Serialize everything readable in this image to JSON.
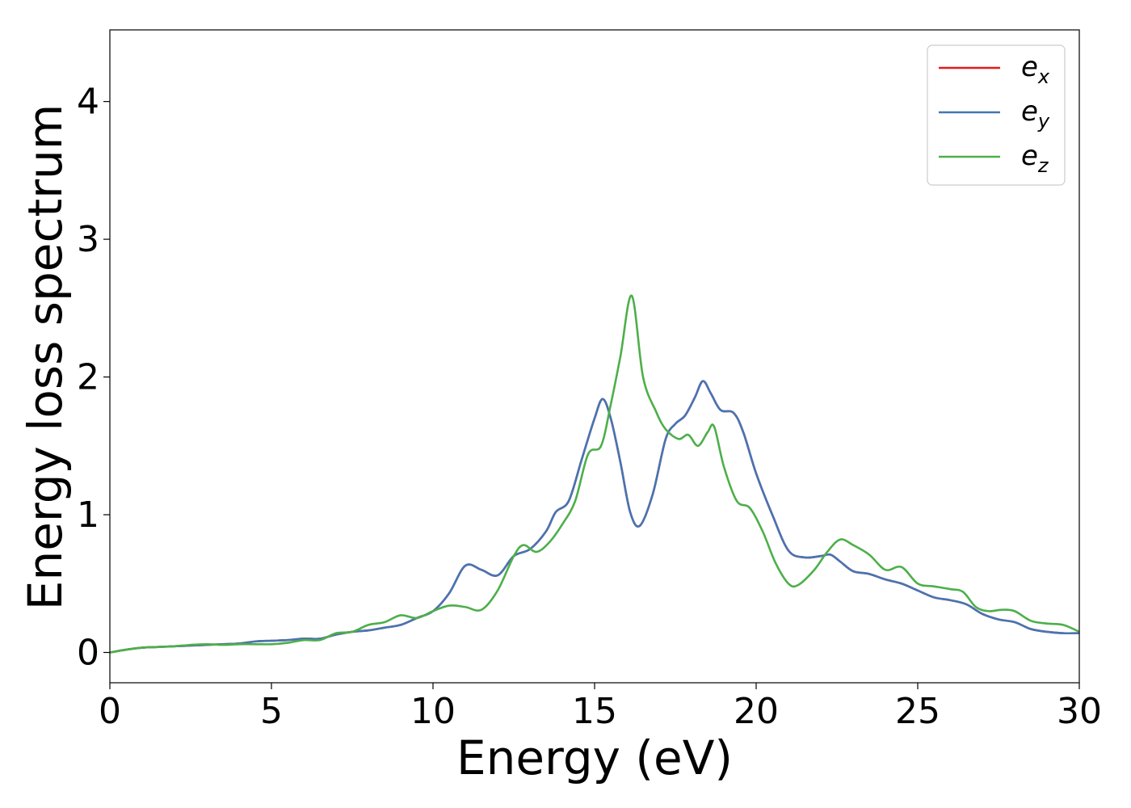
{
  "chart_data": {
    "type": "line",
    "title": "",
    "xlabel": "Energy (eV)",
    "ylabel": "Energy loss spectrum",
    "xlim": [
      0,
      30
    ],
    "ylim": [
      -0.22,
      4.52
    ],
    "xticks": [
      0,
      5,
      10,
      15,
      20,
      25,
      30
    ],
    "yticks": [
      0,
      1,
      2,
      3,
      4
    ],
    "grid": false,
    "legend_position": "top-right",
    "series": [
      {
        "name": "e_x",
        "label_main": "e",
        "label_sub": "x",
        "color": "#e41a1c",
        "points": [
          [
            0,
            0.0
          ],
          [
            0.5,
            0.02
          ],
          [
            1,
            0.035
          ],
          [
            1.5,
            0.04
          ],
          [
            2,
            0.045
          ],
          [
            2.5,
            0.05
          ],
          [
            3,
            0.055
          ],
          [
            3.5,
            0.06
          ],
          [
            4,
            0.065
          ],
          [
            4.5,
            0.08
          ],
          [
            5,
            0.085
          ],
          [
            5.5,
            0.09
          ],
          [
            6,
            0.1
          ],
          [
            6.5,
            0.1
          ],
          [
            7,
            0.13
          ],
          [
            7.5,
            0.15
          ],
          [
            8,
            0.16
          ],
          [
            8.5,
            0.18
          ],
          [
            9,
            0.2
          ],
          [
            9.5,
            0.25
          ],
          [
            10,
            0.3
          ],
          [
            10.5,
            0.43
          ],
          [
            11,
            0.63
          ],
          [
            11.5,
            0.6
          ],
          [
            12,
            0.56
          ],
          [
            12.5,
            0.7
          ],
          [
            13,
            0.75
          ],
          [
            13.5,
            0.88
          ],
          [
            13.8,
            1.02
          ],
          [
            14.2,
            1.1
          ],
          [
            14.6,
            1.4
          ],
          [
            15,
            1.7
          ],
          [
            15.25,
            1.84
          ],
          [
            15.5,
            1.7
          ],
          [
            15.8,
            1.38
          ],
          [
            16.1,
            1.02
          ],
          [
            16.4,
            0.92
          ],
          [
            16.8,
            1.15
          ],
          [
            17.2,
            1.55
          ],
          [
            17.5,
            1.66
          ],
          [
            17.8,
            1.72
          ],
          [
            18.1,
            1.85
          ],
          [
            18.35,
            1.97
          ],
          [
            18.6,
            1.88
          ],
          [
            18.9,
            1.76
          ],
          [
            19.3,
            1.74
          ],
          [
            19.6,
            1.6
          ],
          [
            20,
            1.3
          ],
          [
            20.5,
            1.0
          ],
          [
            21,
            0.74
          ],
          [
            21.5,
            0.69
          ],
          [
            22,
            0.7
          ],
          [
            22.3,
            0.71
          ],
          [
            22.6,
            0.66
          ],
          [
            23,
            0.59
          ],
          [
            23.5,
            0.57
          ],
          [
            24,
            0.53
          ],
          [
            24.5,
            0.5
          ],
          [
            25,
            0.45
          ],
          [
            25.5,
            0.4
          ],
          [
            26,
            0.38
          ],
          [
            26.5,
            0.35
          ],
          [
            27,
            0.28
          ],
          [
            27.5,
            0.24
          ],
          [
            28,
            0.22
          ],
          [
            28.5,
            0.17
          ],
          [
            29,
            0.15
          ],
          [
            29.5,
            0.14
          ],
          [
            30,
            0.14
          ]
        ]
      },
      {
        "name": "e_y",
        "label_main": "e",
        "label_sub": "y",
        "color": "#4575b4",
        "points": [
          [
            0,
            0.0
          ],
          [
            0.5,
            0.02
          ],
          [
            1,
            0.035
          ],
          [
            1.5,
            0.04
          ],
          [
            2,
            0.045
          ],
          [
            2.5,
            0.05
          ],
          [
            3,
            0.055
          ],
          [
            3.5,
            0.06
          ],
          [
            4,
            0.065
          ],
          [
            4.5,
            0.08
          ],
          [
            5,
            0.085
          ],
          [
            5.5,
            0.09
          ],
          [
            6,
            0.1
          ],
          [
            6.5,
            0.1
          ],
          [
            7,
            0.13
          ],
          [
            7.5,
            0.15
          ],
          [
            8,
            0.16
          ],
          [
            8.5,
            0.18
          ],
          [
            9,
            0.2
          ],
          [
            9.5,
            0.25
          ],
          [
            10,
            0.3
          ],
          [
            10.5,
            0.43
          ],
          [
            11,
            0.63
          ],
          [
            11.5,
            0.6
          ],
          [
            12,
            0.56
          ],
          [
            12.5,
            0.7
          ],
          [
            13,
            0.75
          ],
          [
            13.5,
            0.88
          ],
          [
            13.8,
            1.02
          ],
          [
            14.2,
            1.1
          ],
          [
            14.6,
            1.4
          ],
          [
            15,
            1.7
          ],
          [
            15.25,
            1.84
          ],
          [
            15.5,
            1.7
          ],
          [
            15.8,
            1.38
          ],
          [
            16.1,
            1.02
          ],
          [
            16.4,
            0.92
          ],
          [
            16.8,
            1.15
          ],
          [
            17.2,
            1.55
          ],
          [
            17.5,
            1.66
          ],
          [
            17.8,
            1.72
          ],
          [
            18.1,
            1.85
          ],
          [
            18.35,
            1.97
          ],
          [
            18.6,
            1.88
          ],
          [
            18.9,
            1.76
          ],
          [
            19.3,
            1.74
          ],
          [
            19.6,
            1.6
          ],
          [
            20,
            1.3
          ],
          [
            20.5,
            1.0
          ],
          [
            21,
            0.74
          ],
          [
            21.5,
            0.69
          ],
          [
            22,
            0.7
          ],
          [
            22.3,
            0.71
          ],
          [
            22.6,
            0.66
          ],
          [
            23,
            0.59
          ],
          [
            23.5,
            0.57
          ],
          [
            24,
            0.53
          ],
          [
            24.5,
            0.5
          ],
          [
            25,
            0.45
          ],
          [
            25.5,
            0.4
          ],
          [
            26,
            0.38
          ],
          [
            26.5,
            0.35
          ],
          [
            27,
            0.28
          ],
          [
            27.5,
            0.24
          ],
          [
            28,
            0.22
          ],
          [
            28.5,
            0.17
          ],
          [
            29,
            0.15
          ],
          [
            29.5,
            0.14
          ],
          [
            30,
            0.14
          ]
        ]
      },
      {
        "name": "e_z",
        "label_main": "e",
        "label_sub": "z",
        "color": "#4daf4a",
        "points": [
          [
            0,
            0.0
          ],
          [
            0.5,
            0.02
          ],
          [
            1,
            0.035
          ],
          [
            1.5,
            0.04
          ],
          [
            2,
            0.045
          ],
          [
            2.5,
            0.055
          ],
          [
            3,
            0.06
          ],
          [
            3.5,
            0.055
          ],
          [
            4,
            0.06
          ],
          [
            4.5,
            0.06
          ],
          [
            5,
            0.06
          ],
          [
            5.5,
            0.07
          ],
          [
            6,
            0.09
          ],
          [
            6.5,
            0.09
          ],
          [
            7,
            0.14
          ],
          [
            7.5,
            0.15
          ],
          [
            8,
            0.2
          ],
          [
            8.5,
            0.22
          ],
          [
            9,
            0.27
          ],
          [
            9.5,
            0.25
          ],
          [
            10,
            0.3
          ],
          [
            10.5,
            0.34
          ],
          [
            11,
            0.33
          ],
          [
            11.5,
            0.31
          ],
          [
            12,
            0.45
          ],
          [
            12.5,
            0.7
          ],
          [
            12.8,
            0.78
          ],
          [
            13.2,
            0.73
          ],
          [
            13.6,
            0.8
          ],
          [
            14,
            0.93
          ],
          [
            14.4,
            1.1
          ],
          [
            14.8,
            1.44
          ],
          [
            15.2,
            1.5
          ],
          [
            15.5,
            1.8
          ],
          [
            15.8,
            2.15
          ],
          [
            16.15,
            2.59
          ],
          [
            16.5,
            2.0
          ],
          [
            16.9,
            1.75
          ],
          [
            17.2,
            1.62
          ],
          [
            17.6,
            1.55
          ],
          [
            17.9,
            1.58
          ],
          [
            18.2,
            1.5
          ],
          [
            18.5,
            1.6
          ],
          [
            18.7,
            1.64
          ],
          [
            19,
            1.35
          ],
          [
            19.4,
            1.1
          ],
          [
            19.8,
            1.05
          ],
          [
            20.2,
            0.88
          ],
          [
            20.6,
            0.65
          ],
          [
            21,
            0.5
          ],
          [
            21.3,
            0.49
          ],
          [
            21.8,
            0.6
          ],
          [
            22.2,
            0.73
          ],
          [
            22.6,
            0.82
          ],
          [
            23,
            0.78
          ],
          [
            23.5,
            0.71
          ],
          [
            24,
            0.6
          ],
          [
            24.5,
            0.62
          ],
          [
            25,
            0.5
          ],
          [
            25.5,
            0.48
          ],
          [
            26,
            0.46
          ],
          [
            26.4,
            0.44
          ],
          [
            26.8,
            0.33
          ],
          [
            27.2,
            0.3
          ],
          [
            27.6,
            0.31
          ],
          [
            28,
            0.3
          ],
          [
            28.5,
            0.23
          ],
          [
            29,
            0.21
          ],
          [
            29.5,
            0.2
          ],
          [
            30,
            0.15
          ]
        ]
      }
    ]
  }
}
